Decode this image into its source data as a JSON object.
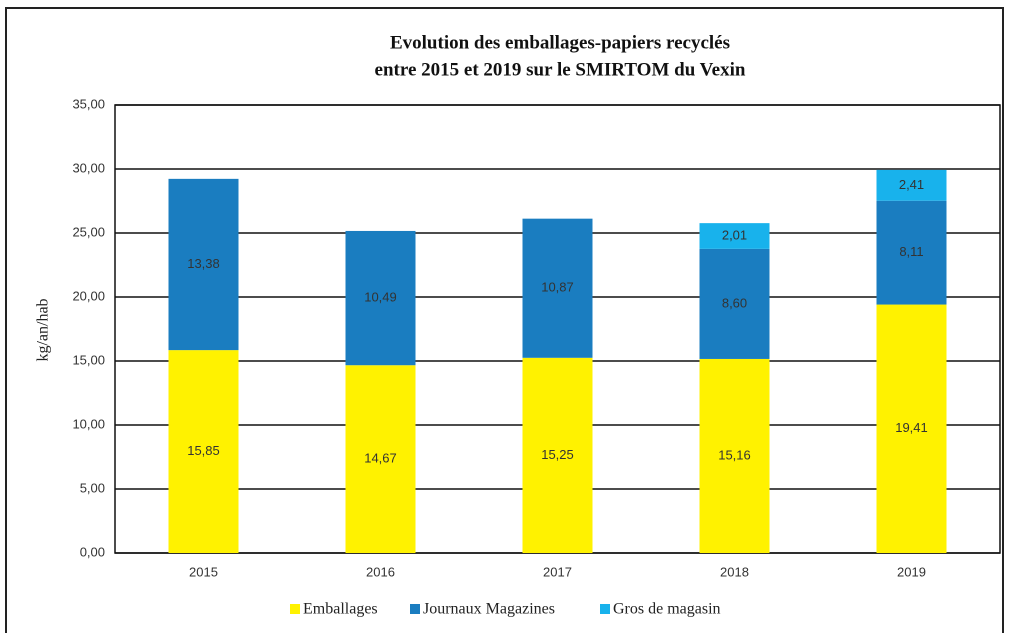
{
  "chart_data": {
    "type": "stacked_bar",
    "title": [
      "Evolution des emballages-papiers recyclés",
      "entre 2015 et 2019 sur le SMIRTOM du Vexin"
    ],
    "y_label": "kg/an/hab",
    "categories": [
      "2015",
      "2016",
      "2017",
      "2018",
      "2019"
    ],
    "series": [
      {
        "name": "Emballages",
        "color": "#fff200",
        "values": [
          15.85,
          14.67,
          15.25,
          15.16,
          19.41
        ],
        "value_labels": [
          "15,85",
          "14,67",
          "15,25",
          "15,16",
          "19,41"
        ]
      },
      {
        "name": "Journaux Magazines",
        "color": "#1a7dc0",
        "values": [
          13.38,
          10.49,
          10.87,
          8.6,
          8.11
        ],
        "value_labels": [
          "13,38",
          "10,49",
          "10,87",
          "8,60",
          "8,11"
        ]
      },
      {
        "name": "Gros de magasin",
        "color": "#18b2ec",
        "values": [
          null,
          null,
          null,
          2.01,
          2.41
        ],
        "value_labels": [
          null,
          null,
          null,
          "2,01",
          "2,41"
        ]
      }
    ],
    "ylim": [
      0,
      35
    ],
    "yticks": [
      {
        "value": 0,
        "label": "0,00"
      },
      {
        "value": 5,
        "label": "5,00"
      },
      {
        "value": 10,
        "label": "10,00"
      },
      {
        "value": 15,
        "label": "15,00"
      },
      {
        "value": 20,
        "label": "20,00"
      },
      {
        "value": 25,
        "label": "25,00"
      },
      {
        "value": 30,
        "label": "30,00"
      },
      {
        "value": 35,
        "label": "35,00"
      }
    ],
    "grid": true,
    "legend": "bottom"
  }
}
